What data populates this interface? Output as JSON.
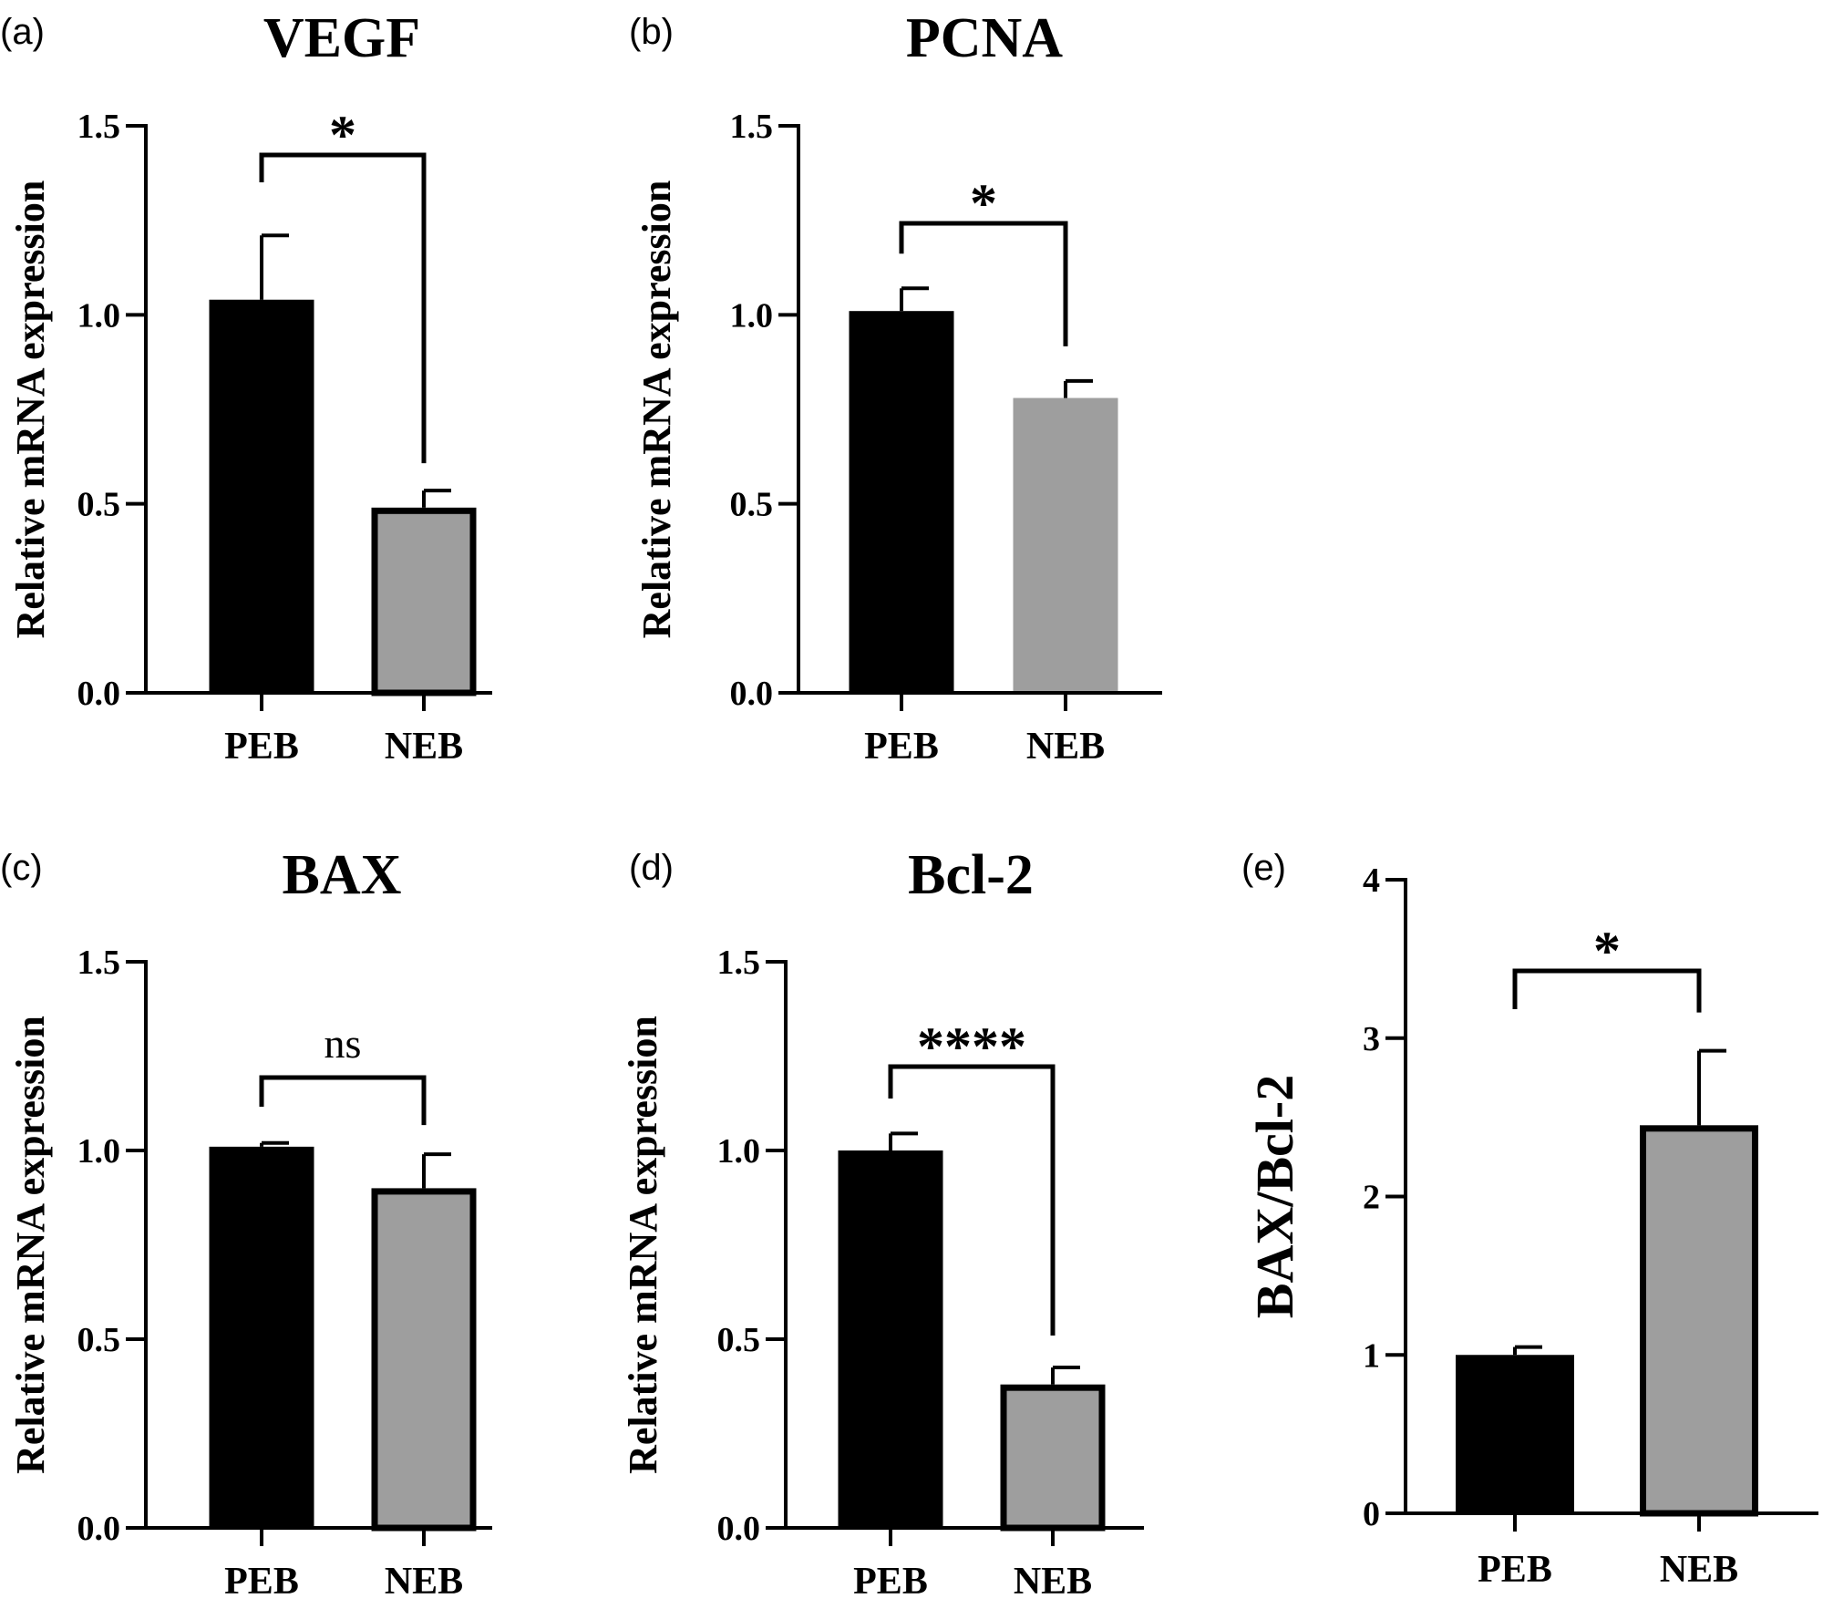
{
  "colors": {
    "peb": "#000000",
    "neb": "#9e9e9e",
    "axis": "#000000"
  },
  "chart_data": [
    {
      "type": "bar",
      "panel": "(a)",
      "title": "VEGF",
      "ylabel": "Relative mRNA expression",
      "categories": [
        "PEB",
        "NEB"
      ],
      "values": [
        1.04,
        0.49
      ],
      "errors": [
        0.17,
        0.045
      ],
      "ylim": [
        0,
        1.5
      ],
      "yticks": [
        "0.0",
        "0.5",
        "1.0",
        "1.5"
      ],
      "significance": "*",
      "outlined_bars": true
    },
    {
      "type": "bar",
      "panel": "(b)",
      "title": "PCNA",
      "ylabel": "Relative mRNA expression",
      "categories": [
        "PEB",
        "NEB"
      ],
      "values": [
        1.01,
        0.78
      ],
      "errors": [
        0.06,
        0.045
      ],
      "ylim": [
        0,
        1.5
      ],
      "yticks": [
        "0.0",
        "0.5",
        "1.0",
        "1.5"
      ],
      "significance": "*",
      "outlined_bars": false
    },
    {
      "type": "bar",
      "panel": "(c)",
      "title": "BAX",
      "ylabel": "Relative mRNA expression",
      "categories": [
        "PEB",
        "NEB"
      ],
      "values": [
        1.01,
        0.9
      ],
      "errors": [
        0.01,
        0.09
      ],
      "ylim": [
        0,
        1.5
      ],
      "yticks": [
        "0.0",
        "0.5",
        "1.0",
        "1.5"
      ],
      "significance": "ns",
      "outlined_bars": true
    },
    {
      "type": "bar",
      "panel": "(d)",
      "title": "Bcl-2",
      "ylabel": "Relative mRNA expression",
      "categories": [
        "PEB",
        "NEB"
      ],
      "values": [
        1.0,
        0.38
      ],
      "errors": [
        0.045,
        0.045
      ],
      "ylim": [
        0,
        1.5
      ],
      "yticks": [
        "0.0",
        "0.5",
        "1.0",
        "1.5"
      ],
      "significance": "****",
      "outlined_bars": true
    },
    {
      "type": "bar",
      "panel": "(e)",
      "title": "",
      "ylabel": "BAX/Bcl-2",
      "categories": [
        "PEB",
        "NEB"
      ],
      "values": [
        1.0,
        2.45
      ],
      "errors": [
        0.05,
        0.47
      ],
      "ylim": [
        0,
        4
      ],
      "yticks": [
        "0",
        "1",
        "2",
        "3",
        "4"
      ],
      "significance": "*",
      "outlined_bars": true
    }
  ]
}
